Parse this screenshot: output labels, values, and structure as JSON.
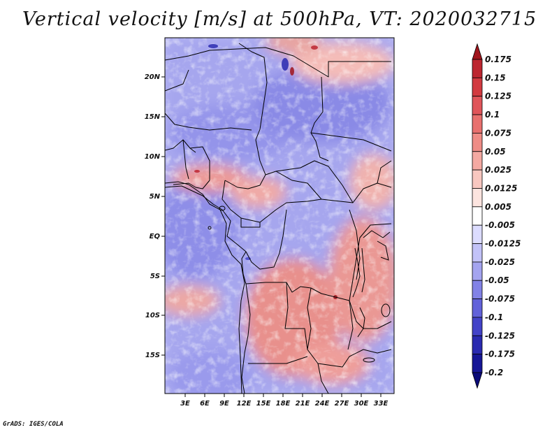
{
  "title": "Vertical velocity [m/s] at 500hPa, VT: 2020032715",
  "credit": "GrADS: IGES/COLA",
  "map": {
    "lat_labels": [
      "20N",
      "15N",
      "10N",
      "5N",
      "EQ",
      "5S",
      "10S",
      "15S"
    ],
    "lon_labels": [
      "3E",
      "6E",
      "9E",
      "12E",
      "15E",
      "18E",
      "21E",
      "24E",
      "27E",
      "30E",
      "33E"
    ]
  },
  "colorbar": {
    "labels": [
      "0.175",
      "0.15",
      "0.125",
      "0.1",
      "0.075",
      "0.05",
      "0.025",
      "0.0125",
      "0.005",
      "-0.005",
      "-0.0125",
      "-0.025",
      "-0.05",
      "-0.075",
      "-0.1",
      "-0.125",
      "-0.175",
      "-0.2"
    ],
    "colors": [
      "#a0141c",
      "#bd2630",
      "#d23a40",
      "#e0555a",
      "#e8706e",
      "#ef8c86",
      "#f4a9a2",
      "#f8c7c0",
      "#fce4df",
      "#ffffff",
      "#dcdcff",
      "#c2c2f8",
      "#a4a4f0",
      "#8282e6",
      "#6262da",
      "#4343c8",
      "#2a2ab0",
      "#161696",
      "#0a0a78"
    ]
  },
  "colors": {
    "positive": "#d9484c",
    "negative": "#5a5ae0",
    "border": "#000000"
  }
}
